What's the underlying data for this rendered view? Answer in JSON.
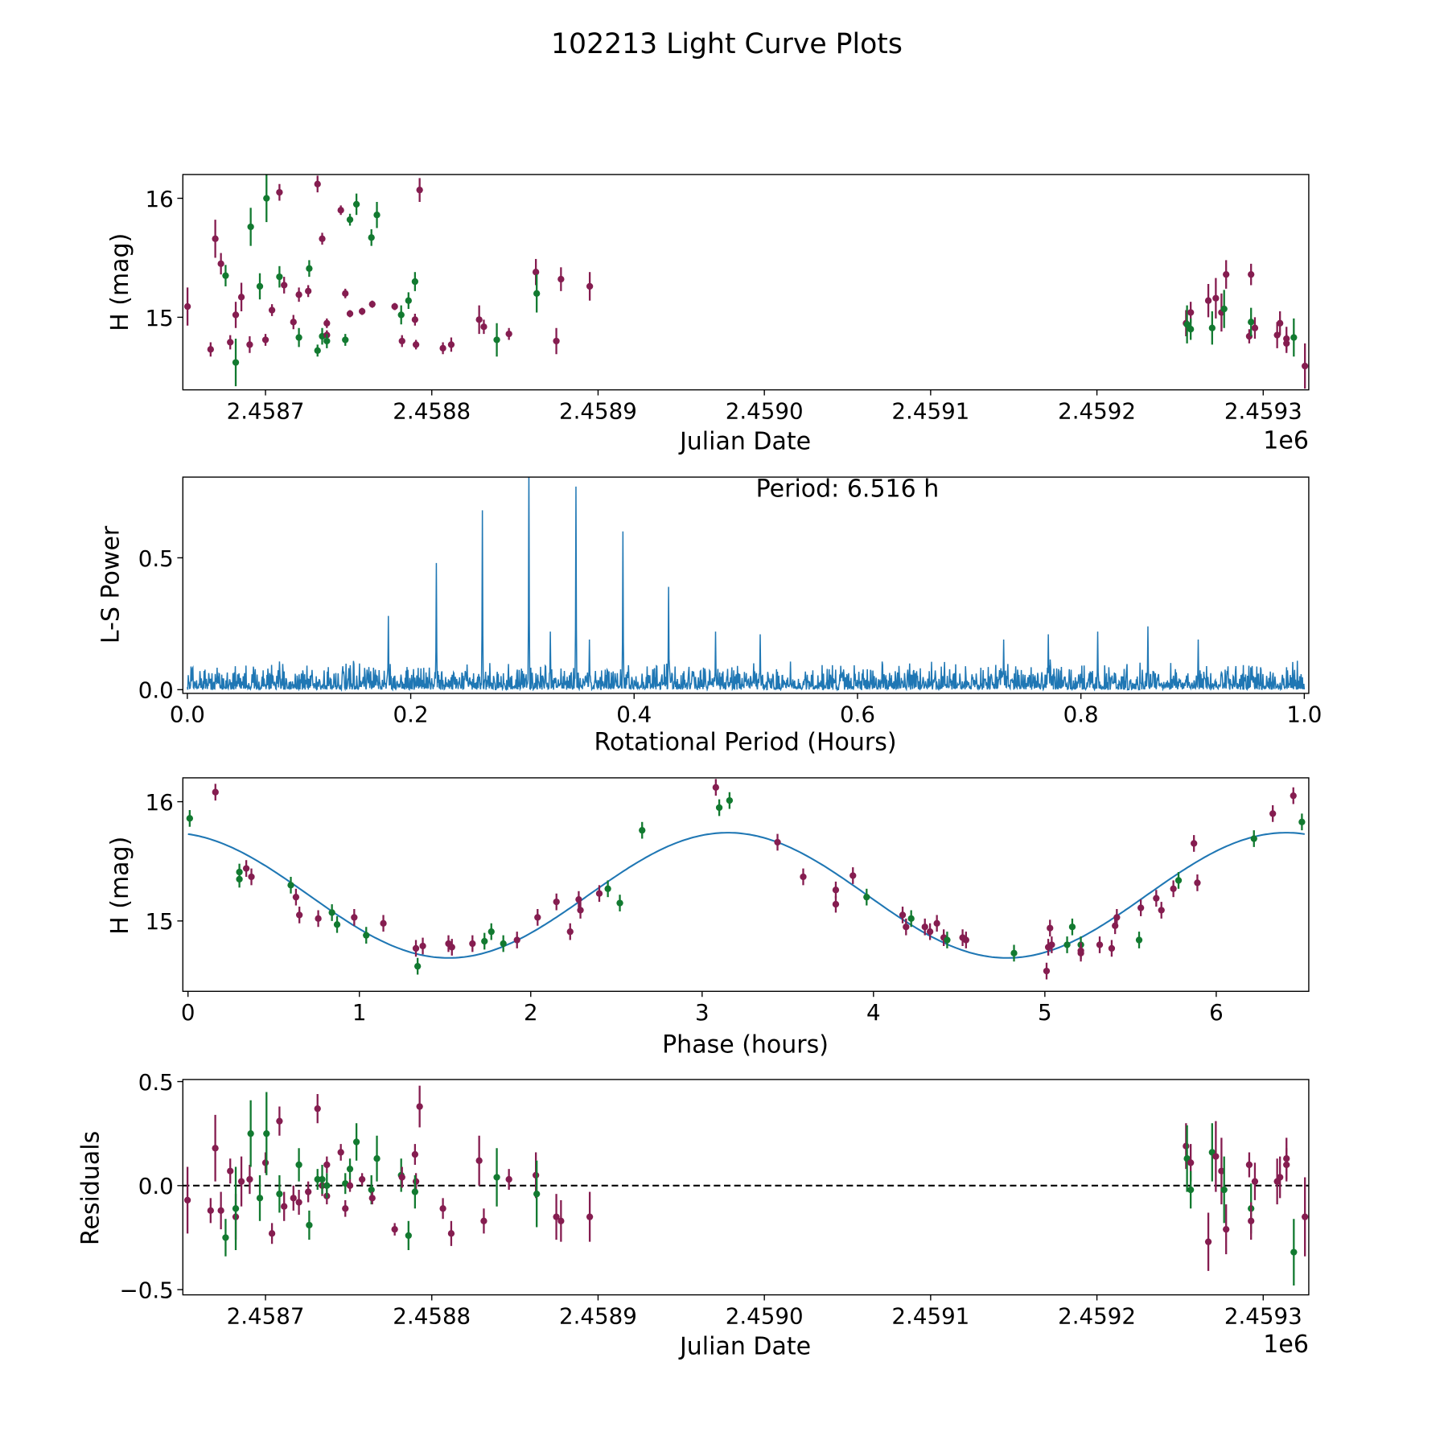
{
  "title": "102213 Light Curve Plots",
  "colors": {
    "filter_a": "#851d50",
    "filter_b": "#127a30",
    "line": "#1f77b4"
  },
  "chart_data": [
    {
      "id": "lightcurve",
      "type": "scatter",
      "xlabel": "Julian Date",
      "ylabel": "H (mag)",
      "offset_label": "1e6",
      "xlim": [
        2458650.3,
        2459327.4
      ],
      "ylim": [
        14.39,
        16.2
      ],
      "xticks": [
        2458700,
        2458800,
        2458900,
        2459000,
        2459100,
        2459200,
        2459300
      ],
      "xtick_labels": [
        "2.4587",
        "2.4588",
        "2.4589",
        "2.4590",
        "2.4591",
        "2.4592",
        "2.4593"
      ],
      "yticks": [
        15,
        16
      ],
      "ytick_labels": [
        "15",
        "16"
      ],
      "columns": [
        "jd",
        "H",
        "H_err",
        "residual",
        "series"
      ],
      "points": [
        [
          2458653.1,
          15.09,
          0.16,
          -0.07,
          "a"
        ],
        [
          2458667.0,
          14.73,
          0.06,
          -0.12,
          "a"
        ],
        [
          2458669.8,
          15.66,
          0.16,
          0.18,
          "a"
        ],
        [
          2458673.2,
          15.45,
          0.09,
          -0.12,
          "a"
        ],
        [
          2458676.0,
          15.35,
          0.09,
          -0.25,
          "b"
        ],
        [
          2458678.8,
          14.79,
          0.06,
          0.07,
          "a"
        ],
        [
          2458682.1,
          15.02,
          0.11,
          -0.15,
          "a"
        ],
        [
          2458682.1,
          14.62,
          0.2,
          -0.11,
          "b"
        ],
        [
          2458685.5,
          15.17,
          0.12,
          0.02,
          "a"
        ],
        [
          2458690.5,
          14.77,
          0.07,
          0.03,
          "a"
        ],
        [
          2458691.1,
          15.76,
          0.16,
          0.25,
          "b"
        ],
        [
          2458696.6,
          15.26,
          0.11,
          -0.06,
          "b"
        ],
        [
          2458700.0,
          14.81,
          0.05,
          0.11,
          "a"
        ],
        [
          2458700.6,
          16.0,
          0.2,
          0.25,
          "b"
        ],
        [
          2458703.9,
          15.06,
          0.05,
          -0.23,
          "a"
        ],
        [
          2458708.4,
          15.34,
          0.09,
          -0.04,
          "b"
        ],
        [
          2458708.4,
          16.05,
          0.07,
          0.31,
          "a"
        ],
        [
          2458711.2,
          15.27,
          0.07,
          -0.1,
          "a"
        ],
        [
          2458716.8,
          14.96,
          0.06,
          -0.06,
          "a"
        ],
        [
          2458720.1,
          14.83,
          0.08,
          0.1,
          "b"
        ],
        [
          2458720.1,
          15.19,
          0.06,
          -0.08,
          "a"
        ],
        [
          2458725.7,
          15.22,
          0.05,
          -0.03,
          "a"
        ],
        [
          2458726.3,
          15.41,
          0.07,
          -0.19,
          "b"
        ],
        [
          2458731.3,
          14.72,
          0.05,
          0.03,
          "b"
        ],
        [
          2458731.3,
          16.12,
          0.07,
          0.37,
          "a"
        ],
        [
          2458734.1,
          15.66,
          0.05,
          0.0,
          "a"
        ],
        [
          2458734.1,
          14.84,
          0.07,
          0.03,
          "b"
        ],
        [
          2458736.9,
          14.85,
          0.04,
          -0.05,
          "a"
        ],
        [
          2458736.9,
          14.95,
          0.04,
          0.1,
          "a"
        ],
        [
          2458736.9,
          14.8,
          0.06,
          0.0,
          "b"
        ],
        [
          2458745.3,
          15.9,
          0.04,
          0.16,
          "a"
        ],
        [
          2458748.0,
          14.81,
          0.05,
          0.01,
          "b"
        ],
        [
          2458748.0,
          15.2,
          0.04,
          -0.11,
          "a"
        ],
        [
          2458750.8,
          15.82,
          0.05,
          0.08,
          "b"
        ],
        [
          2458750.8,
          15.03,
          0.03,
          0.0,
          "a"
        ],
        [
          2458754.7,
          15.95,
          0.09,
          0.21,
          "b"
        ],
        [
          2458758.1,
          15.05,
          0.03,
          0.03,
          "a"
        ],
        [
          2458763.7,
          15.67,
          0.07,
          -0.02,
          "b"
        ],
        [
          2458764.2,
          15.11,
          0.03,
          -0.06,
          "a"
        ],
        [
          2458767.0,
          15.86,
          0.11,
          0.13,
          "b"
        ],
        [
          2458777.7,
          15.09,
          0.03,
          -0.21,
          "a"
        ],
        [
          2458781.6,
          15.02,
          0.08,
          0.05,
          "b"
        ],
        [
          2458782.1,
          14.8,
          0.05,
          0.04,
          "a"
        ],
        [
          2458786.0,
          15.14,
          0.07,
          -0.24,
          "b"
        ],
        [
          2458789.9,
          14.98,
          0.05,
          0.15,
          "a"
        ],
        [
          2458790.5,
          14.77,
          0.04,
          0.02,
          "a"
        ],
        [
          2458789.9,
          15.3,
          0.08,
          -0.03,
          "b"
        ],
        [
          2458792.7,
          16.07,
          0.1,
          0.38,
          "a"
        ],
        [
          2458806.7,
          14.74,
          0.05,
          -0.11,
          "a"
        ],
        [
          2458811.7,
          14.77,
          0.06,
          -0.23,
          "a"
        ],
        [
          2458828.5,
          14.98,
          0.12,
          0.12,
          "a"
        ],
        [
          2458831.3,
          14.92,
          0.06,
          -0.17,
          "a"
        ],
        [
          2458839.1,
          14.81,
          0.14,
          0.04,
          "b"
        ],
        [
          2458846.4,
          14.86,
          0.05,
          0.03,
          "a"
        ],
        [
          2458862.6,
          15.38,
          0.11,
          0.05,
          "a"
        ],
        [
          2458863.1,
          15.2,
          0.16,
          -0.04,
          "b"
        ],
        [
          2458874.9,
          14.8,
          0.11,
          -0.15,
          "a"
        ],
        [
          2458877.7,
          15.32,
          0.1,
          -0.17,
          "a"
        ],
        [
          2458895.0,
          15.26,
          0.12,
          -0.15,
          "a"
        ],
        [
          2459253.6,
          14.95,
          0.11,
          0.19,
          "a"
        ],
        [
          2459254.2,
          14.94,
          0.16,
          0.13,
          "b"
        ],
        [
          2459256.4,
          15.04,
          0.09,
          0.11,
          "a"
        ],
        [
          2459256.4,
          14.9,
          0.09,
          -0.02,
          "b"
        ],
        [
          2459267.0,
          15.14,
          0.14,
          -0.27,
          "a"
        ],
        [
          2459269.3,
          14.91,
          0.14,
          0.16,
          "b"
        ],
        [
          2459271.5,
          15.16,
          0.17,
          0.14,
          "a"
        ],
        [
          2459274.9,
          15.04,
          0.16,
          0.07,
          "a"
        ],
        [
          2459276.5,
          15.07,
          0.16,
          -0.02,
          "b"
        ],
        [
          2459277.7,
          15.36,
          0.12,
          -0.21,
          "a"
        ],
        [
          2459291.6,
          14.84,
          0.06,
          0.1,
          "a"
        ],
        [
          2459292.7,
          14.96,
          0.12,
          -0.11,
          "b"
        ],
        [
          2459292.7,
          15.36,
          0.09,
          -0.17,
          "a"
        ],
        [
          2459295.0,
          14.91,
          0.09,
          0.02,
          "a"
        ],
        [
          2459308.4,
          14.85,
          0.11,
          0.02,
          "a"
        ],
        [
          2459310.1,
          14.95,
          0.1,
          0.04,
          "a"
        ],
        [
          2459314.0,
          14.82,
          0.1,
          0.13,
          "a"
        ],
        [
          2459314.0,
          14.78,
          0.08,
          0.1,
          "a"
        ],
        [
          2459318.4,
          14.83,
          0.16,
          -0.32,
          "b"
        ],
        [
          2459325.1,
          14.59,
          0.19,
          -0.15,
          "a"
        ]
      ]
    },
    {
      "id": "periodogram",
      "type": "line",
      "xlabel": "Rotational Period (Hours)",
      "ylabel": "L-S Power",
      "annotation": "Period: 6.516 h",
      "xlim": [
        -0.004,
        1.004
      ],
      "ylim": [
        -0.014,
        0.806
      ],
      "xticks": [
        0,
        0.2,
        0.4,
        0.6,
        0.8,
        1.0
      ],
      "xtick_labels": [
        "0.0",
        "0.2",
        "0.4",
        "0.6",
        "0.8",
        "1.0"
      ],
      "yticks": [
        0,
        0.5
      ],
      "ytick_labels": [
        "0.0",
        "0.5"
      ],
      "noise_level": 0.09,
      "peaks": [
        [
          0.18,
          0.28
        ],
        [
          0.223,
          0.48
        ],
        [
          0.264,
          0.68
        ],
        [
          0.306,
          0.85
        ],
        [
          0.348,
          0.77
        ],
        [
          0.39,
          0.6
        ],
        [
          0.431,
          0.39
        ],
        [
          0.325,
          0.22
        ],
        [
          0.36,
          0.19
        ],
        [
          0.473,
          0.22
        ],
        [
          0.513,
          0.21
        ],
        [
          0.731,
          0.19
        ],
        [
          0.771,
          0.21
        ],
        [
          0.815,
          0.22
        ],
        [
          0.86,
          0.24
        ],
        [
          0.905,
          0.19
        ]
      ]
    },
    {
      "id": "phased",
      "type": "scatter",
      "xlabel": "Phase (hours)",
      "ylabel": "H (mag)",
      "xlim": [
        -0.03,
        6.54
      ],
      "ylim": [
        14.41,
        16.2
      ],
      "xticks": [
        0,
        1,
        2,
        3,
        4,
        5,
        6
      ],
      "xtick_labels": [
        "0",
        "1",
        "2",
        "3",
        "4",
        "5",
        "6"
      ],
      "yticks": [
        15,
        16
      ],
      "ytick_labels": [
        "15",
        "16"
      ],
      "model": {
        "mean": 15.215,
        "amplitude": 0.525,
        "peak_phase": 3.15,
        "cycle_hours": 3.258,
        "period_hours": 6.516
      },
      "columns": [
        "phase",
        "H",
        "series"
      ],
      "points": [
        [
          0.01,
          15.86,
          "b"
        ],
        [
          0.16,
          16.08,
          "a"
        ],
        [
          0.3,
          15.41,
          "b"
        ],
        [
          0.3,
          15.35,
          "b"
        ],
        [
          0.34,
          15.44,
          "a"
        ],
        [
          0.37,
          15.37,
          "a"
        ],
        [
          0.6,
          15.3,
          "b"
        ],
        [
          0.63,
          15.2,
          "a"
        ],
        [
          0.65,
          15.05,
          "a"
        ],
        [
          0.76,
          15.02,
          "a"
        ],
        [
          0.84,
          15.07,
          "b"
        ],
        [
          0.87,
          14.97,
          "b"
        ],
        [
          0.97,
          15.03,
          "a"
        ],
        [
          1.04,
          14.88,
          "b"
        ],
        [
          1.14,
          14.98,
          "a"
        ],
        [
          1.33,
          14.77,
          "a"
        ],
        [
          1.34,
          14.62,
          "b"
        ],
        [
          1.37,
          14.79,
          "a"
        ],
        [
          1.52,
          14.81,
          "a"
        ],
        [
          1.54,
          14.78,
          "a"
        ],
        [
          1.66,
          14.81,
          "a"
        ],
        [
          1.73,
          14.83,
          "b"
        ],
        [
          1.77,
          14.91,
          "b"
        ],
        [
          1.84,
          14.81,
          "b"
        ],
        [
          1.92,
          14.84,
          "a"
        ],
        [
          2.04,
          15.03,
          "a"
        ],
        [
          2.15,
          15.16,
          "a"
        ],
        [
          2.23,
          14.91,
          "a"
        ],
        [
          2.28,
          15.18,
          "a"
        ],
        [
          2.29,
          15.09,
          "a"
        ],
        [
          2.4,
          15.23,
          "a"
        ],
        [
          2.45,
          15.27,
          "b"
        ],
        [
          2.52,
          15.15,
          "b"
        ],
        [
          2.65,
          15.76,
          "b"
        ],
        [
          3.08,
          16.12,
          "a"
        ],
        [
          3.1,
          15.95,
          "b"
        ],
        [
          3.16,
          16.01,
          "b"
        ],
        [
          3.44,
          15.66,
          "a"
        ],
        [
          3.59,
          15.37,
          "a"
        ],
        [
          3.78,
          15.14,
          "a"
        ],
        [
          3.78,
          15.26,
          "a"
        ],
        [
          3.88,
          15.38,
          "a"
        ],
        [
          3.96,
          15.2,
          "b"
        ],
        [
          4.17,
          15.05,
          "a"
        ],
        [
          4.19,
          14.95,
          "a"
        ],
        [
          4.22,
          15.02,
          "b"
        ],
        [
          4.3,
          14.95,
          "a"
        ],
        [
          4.33,
          14.91,
          "a"
        ],
        [
          4.37,
          14.98,
          "a"
        ],
        [
          4.41,
          14.86,
          "a"
        ],
        [
          4.43,
          14.84,
          "b"
        ],
        [
          4.52,
          14.86,
          "a"
        ],
        [
          4.54,
          14.84,
          "a"
        ],
        [
          4.82,
          14.73,
          "b"
        ],
        [
          5.01,
          14.58,
          "a"
        ],
        [
          5.02,
          14.78,
          "a"
        ],
        [
          5.03,
          14.94,
          "a"
        ],
        [
          5.04,
          14.8,
          "a"
        ],
        [
          5.13,
          14.8,
          "b"
        ],
        [
          5.16,
          14.95,
          "b"
        ],
        [
          5.21,
          14.8,
          "b"
        ],
        [
          5.21,
          14.75,
          "a"
        ],
        [
          5.21,
          14.73,
          "a"
        ],
        [
          5.32,
          14.8,
          "a"
        ],
        [
          5.39,
          14.77,
          "a"
        ],
        [
          5.41,
          14.96,
          "a"
        ],
        [
          5.42,
          15.03,
          "a"
        ],
        [
          5.55,
          14.84,
          "b"
        ],
        [
          5.56,
          15.11,
          "a"
        ],
        [
          5.65,
          15.19,
          "a"
        ],
        [
          5.68,
          15.09,
          "a"
        ],
        [
          5.75,
          15.27,
          "a"
        ],
        [
          5.78,
          15.34,
          "b"
        ],
        [
          5.87,
          15.65,
          "a"
        ],
        [
          5.89,
          15.32,
          "a"
        ],
        [
          6.22,
          15.69,
          "b"
        ],
        [
          6.33,
          15.9,
          "a"
        ],
        [
          6.45,
          16.05,
          "a"
        ],
        [
          6.5,
          15.83,
          "b"
        ]
      ]
    },
    {
      "id": "residuals",
      "type": "scatter",
      "xlabel": "Julian Date",
      "ylabel": "Residuals",
      "offset_label": "1e6",
      "xlim": [
        2458650.3,
        2459327.4
      ],
      "ylim": [
        -0.525,
        0.51
      ],
      "xticks": [
        2458700,
        2458800,
        2458900,
        2459000,
        2459100,
        2459200,
        2459300
      ],
      "xtick_labels": [
        "2.4587",
        "2.4588",
        "2.4589",
        "2.4590",
        "2.4591",
        "2.4592",
        "2.4593"
      ],
      "yticks": [
        -0.5,
        0,
        0.5
      ],
      "ytick_labels": [
        "−0.5",
        "0.0",
        "0.5"
      ],
      "reference_line": 0
    }
  ]
}
